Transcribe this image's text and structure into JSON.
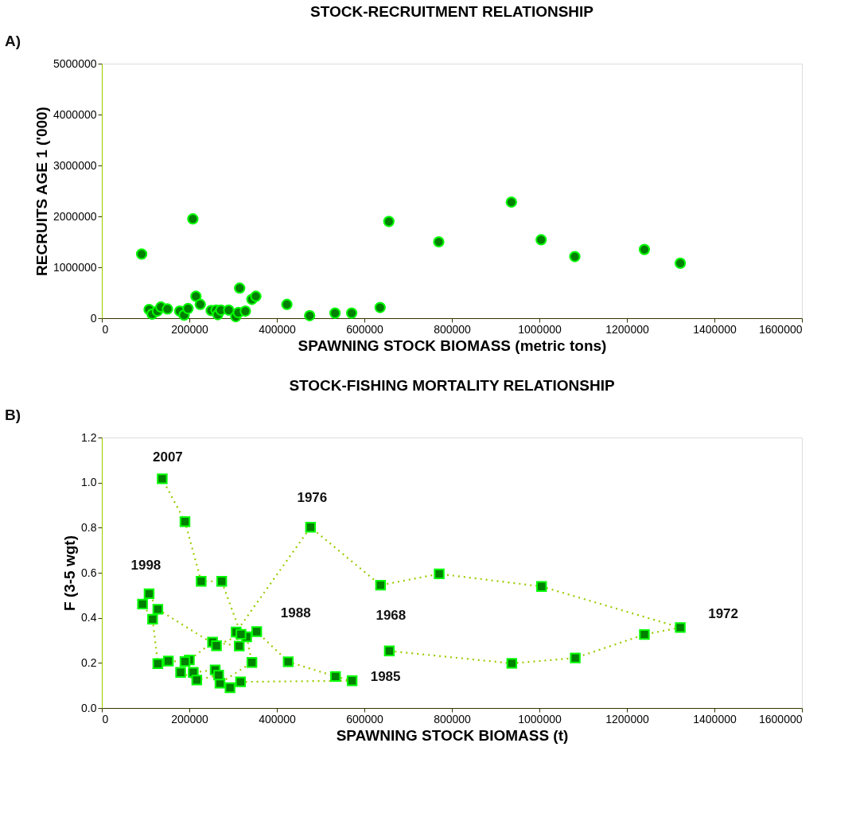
{
  "chart_data": [
    {
      "type": "scatter",
      "title": "STOCK-RECRUITMENT RELATIONSHIP",
      "xlabel": "SPAWNING STOCK BIOMASS (metric tons)",
      "ylabel": "RECRUITS  AGE 1 ('000)",
      "annotations": [
        "A)"
      ],
      "marker": "circle",
      "grid": false,
      "legend": false,
      "xlim": [
        0,
        1600000
      ],
      "xticks": [
        0,
        200000,
        400000,
        600000,
        800000,
        1000000,
        1200000,
        1400000,
        1600000
      ],
      "ylim": [
        0,
        5000000
      ],
      "yticks": [
        0,
        1000000,
        2000000,
        3000000,
        4000000,
        5000000
      ],
      "series": [
        {
          "color": "#008000",
          "x": [
            91000,
            208000,
            108000,
            115000,
            127000,
            135000,
            150000,
            178000,
            188000,
            197000,
            215000,
            225000,
            250000,
            261000,
            265000,
            272000,
            290000,
            306000,
            312000,
            315000,
            328000,
            343000,
            352000,
            423000,
            475000,
            533000,
            571000,
            636000,
            656000,
            770000,
            936000,
            1004000,
            1081000,
            1240000,
            1322000
          ],
          "values": [
            1260000,
            1950000,
            170000,
            80000,
            140000,
            220000,
            180000,
            140000,
            60000,
            190000,
            430000,
            270000,
            150000,
            160000,
            70000,
            160000,
            160000,
            30000,
            110000,
            590000,
            140000,
            370000,
            430000,
            270000,
            50000,
            100000,
            100000,
            210000,
            1900000,
            1500000,
            2280000,
            1540000,
            1210000,
            1350000,
            1080000
          ]
        }
      ]
    },
    {
      "type": "line",
      "title": "STOCK-FISHING MORTALITY RELATIONSHIP",
      "xlabel": "SPAWNING STOCK BIOMASS (t)",
      "ylabel": "F (3-5 wgt)",
      "marker": "square",
      "line_style": "dotted",
      "grid": false,
      "legend": false,
      "annotations": [
        "B)",
        {
          "text": "2007",
          "x": 138000,
          "y": 1.017
        },
        {
          "text": "1976",
          "x": 477000,
          "y": 0.802
        },
        {
          "text": "1998",
          "x": 108000,
          "y": 0.507
        },
        {
          "text": "1988",
          "x": 354000,
          "y": 0.339
        },
        {
          "text": "1968",
          "x": 657000,
          "y": 0.253
        },
        {
          "text": "1985",
          "x": 572000,
          "y": 0.121
        },
        {
          "text": "1972",
          "x": 1322000,
          "y": 0.357
        }
      ],
      "xlim": [
        0,
        1600000
      ],
      "xticks": [
        0,
        200000,
        400000,
        600000,
        800000,
        1000000,
        1200000,
        1400000,
        1600000
      ],
      "ylim": [
        0,
        1.2
      ],
      "yticks": [
        {
          "value": 0,
          "label": "0.0"
        },
        0.2,
        0.4,
        0.6,
        0.8,
        {
          "value": 1,
          "label": "1.0"
        },
        1.2
      ],
      "series": [
        {
          "color": "#008000",
          "x": [
            657000,
            937000,
            1082000,
            1240000,
            1322000,
            1005000,
            771000,
            637000,
            477000,
            307000,
            314000,
            253000,
            200000,
            209000,
            259000,
            293000,
            317000,
            572000,
            534000,
            426000,
            354000,
            331000,
            343000,
            270000,
            267000,
            217000,
            180000,
            190000,
            152000,
            128000,
            116000,
            93000,
            108000,
            128000,
            262000,
            318000,
            274000,
            227000,
            190000,
            138000
          ],
          "values": [
            0.253,
            0.198,
            0.222,
            0.326,
            0.357,
            0.539,
            0.595,
            0.545,
            0.802,
            0.337,
            0.275,
            0.292,
            0.213,
            0.158,
            0.169,
            0.09,
            0.116,
            0.121,
            0.14,
            0.205,
            0.339,
            0.316,
            0.202,
            0.11,
            0.146,
            0.124,
            0.158,
            0.206,
            0.208,
            0.197,
            0.394,
            0.461,
            0.507,
            0.438,
            0.276,
            0.327,
            0.562,
            0.562,
            0.827,
            1.017
          ]
        }
      ]
    }
  ]
}
